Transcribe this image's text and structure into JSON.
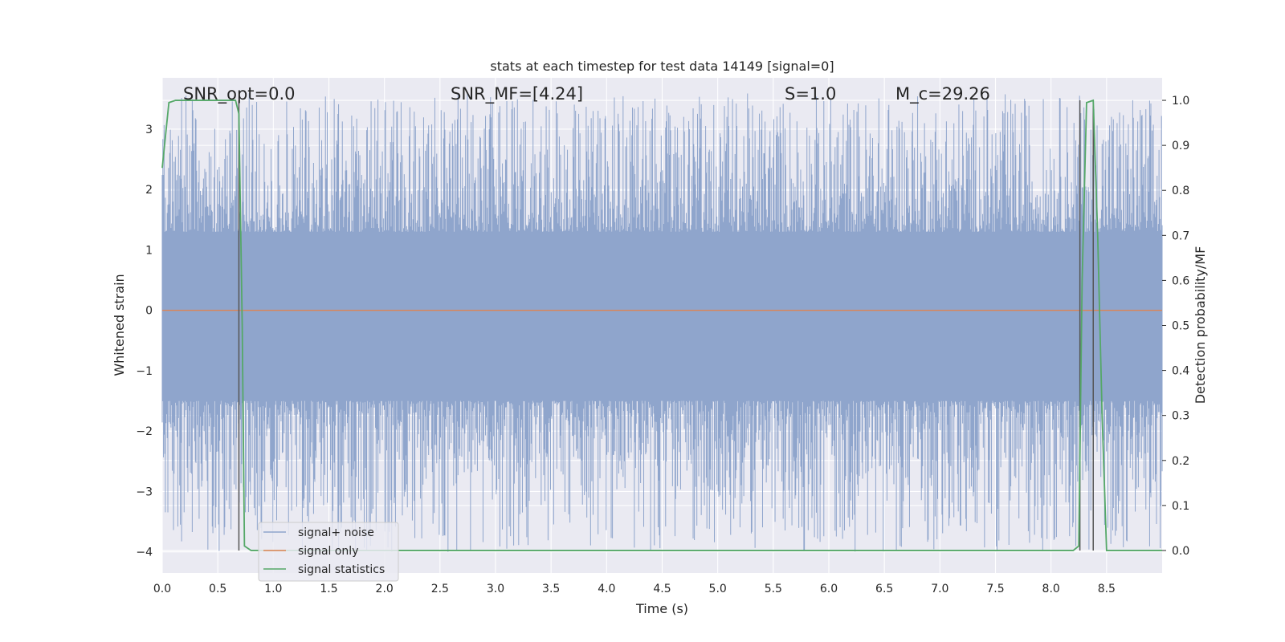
{
  "chart_data": {
    "type": "line",
    "title": "stats at each timestep for test data 14149 [signal=0]",
    "xlabel": "Time (s)",
    "ylabel": "Whitened strain",
    "ylabel_right": "Detection probability/MF",
    "xlim": [
      0.0,
      9.0
    ],
    "ylim": [
      -4.35,
      3.85
    ],
    "ylim_right": [
      -0.05,
      1.05
    ],
    "x_ticks": [
      0.0,
      0.5,
      1.0,
      1.5,
      2.0,
      2.5,
      3.0,
      3.5,
      4.0,
      4.5,
      5.0,
      5.5,
      6.0,
      6.5,
      7.0,
      7.5,
      8.0,
      8.5
    ],
    "x_tick_labels": [
      "0.0",
      "0.5",
      "1.0",
      "1.5",
      "2.0",
      "2.5",
      "3.0",
      "3.5",
      "4.0",
      "4.5",
      "5.0",
      "5.5",
      "6.0",
      "6.5",
      "7.0",
      "7.5",
      "8.0",
      "8.5"
    ],
    "y_ticks": [
      3,
      2,
      1,
      0,
      -1,
      -2,
      -3,
      -4
    ],
    "y_tick_labels": [
      "3",
      "2",
      "1",
      "0",
      "−1",
      "−2",
      "−3",
      "−4"
    ],
    "y_ticks_right": [
      1.0,
      0.9,
      0.8,
      0.7,
      0.6,
      0.5,
      0.4,
      0.3,
      0.2,
      0.1,
      0.0
    ],
    "y_tick_labels_right": [
      "1.0",
      "0.9",
      "0.8",
      "0.7",
      "0.6",
      "0.5",
      "0.4",
      "0.3",
      "0.2",
      "0.1",
      "0.0"
    ],
    "grid": true,
    "legend_placement": "lower-left",
    "annotations": {
      "snr_opt": "SNR_opt=0.0",
      "snr_mf": "SNR_MF=[4.24]",
      "s_stat": "S=1.0",
      "mc": "M_c=29.26"
    },
    "series": [
      {
        "name": "signal+ noise",
        "color": "#8fa5cc",
        "style": "dense noise band",
        "x_range": [
          0.0,
          9.0
        ],
        "envelope_upper": 3.6,
        "envelope_lower": -4.0,
        "core_upper": 1.3,
        "core_lower": -1.5
      },
      {
        "name": "signal only",
        "color": "#dd8452",
        "x": [
          0.0,
          9.0
        ],
        "y": [
          0.0,
          0.0
        ]
      },
      {
        "name": "signal statistics",
        "color": "#55a868",
        "axis": "right",
        "x": [
          0.0,
          0.06,
          0.12,
          0.2,
          0.3,
          0.4,
          0.5,
          0.6,
          0.66,
          0.69,
          0.72,
          0.74,
          0.8,
          1.0,
          2.0,
          3.0,
          4.0,
          5.0,
          6.0,
          7.0,
          8.0,
          8.2,
          8.25,
          8.28,
          8.32,
          8.38,
          8.42,
          8.46,
          8.5,
          8.7,
          9.0
        ],
        "y": [
          0.85,
          0.995,
          1.0,
          1.0,
          1.0,
          1.0,
          1.0,
          1.0,
          1.0,
          0.97,
          0.5,
          0.01,
          0.0,
          0.0,
          0.0,
          0.0,
          0.0,
          0.0,
          0.0,
          0.0,
          0.0,
          0.0,
          0.01,
          0.6,
          0.995,
          1.0,
          0.7,
          0.3,
          0.0,
          0.0,
          0.0
        ]
      }
    ],
    "vertical_markers_x": [
      0.69,
      8.26,
      8.38
    ]
  }
}
